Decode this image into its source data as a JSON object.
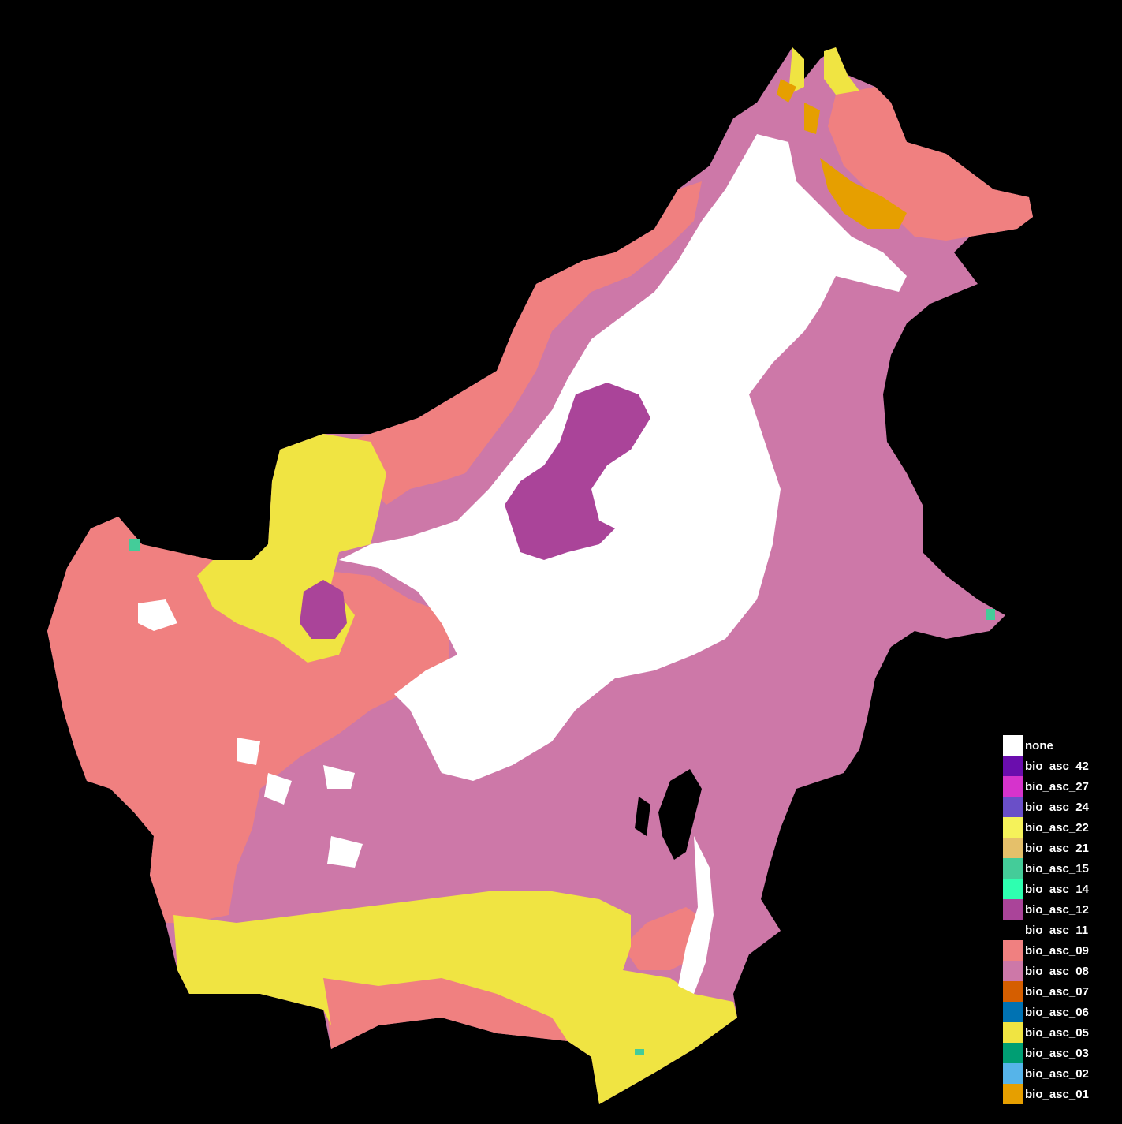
{
  "map": {
    "colors": {
      "background": "#000000",
      "bio_asc_09": "#F08080",
      "bio_asc_08": "#CD78A8",
      "none": "#FFFFFF",
      "bio_asc_05": "#F0E442",
      "bio_asc_12": "#AA4499",
      "bio_asc_01": "#E69F00",
      "bio_asc_15": "#44CC99",
      "bio_asc_24": "#6A4FC8"
    }
  },
  "legend": {
    "items": [
      {
        "label": "none",
        "color": "#FFFFFF"
      },
      {
        "label": "bio_asc_42",
        "color": "#6A0DAD"
      },
      {
        "label": "bio_asc_27",
        "color": "#D633CC"
      },
      {
        "label": "bio_asc_24",
        "color": "#6A4FC8"
      },
      {
        "label": "bio_asc_22",
        "color": "#F5F25A"
      },
      {
        "label": "bio_asc_21",
        "color": "#E5C06A"
      },
      {
        "label": "bio_asc_15",
        "color": "#44CC99"
      },
      {
        "label": "bio_asc_14",
        "color": "#2EFFB0"
      },
      {
        "label": "bio_asc_12",
        "color": "#AA4499"
      },
      {
        "label": "bio_asc_11",
        "color": "#000000"
      },
      {
        "label": "bio_asc_09",
        "color": "#F08080"
      },
      {
        "label": "bio_asc_08",
        "color": "#CD78A8"
      },
      {
        "label": "bio_asc_07",
        "color": "#D55E00"
      },
      {
        "label": "bio_asc_06",
        "color": "#0072B2"
      },
      {
        "label": "bio_asc_05",
        "color": "#F0E442"
      },
      {
        "label": "bio_asc_03",
        "color": "#009E73"
      },
      {
        "label": "bio_asc_02",
        "color": "#56B4E9"
      },
      {
        "label": "bio_asc_01",
        "color": "#E69F00"
      }
    ]
  }
}
